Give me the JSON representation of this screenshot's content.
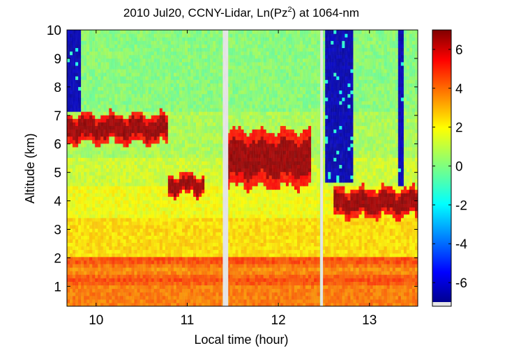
{
  "chart_data": {
    "type": "heatmap",
    "title_main": "2010 Jul20, CCNY-Lidar, Ln(Pz",
    "title_sup": "2",
    "title_tail": ") at 1064-nm",
    "xlabel": "Local time (hour)",
    "ylabel": "Altitude (km)",
    "xlim": [
      9.68,
      13.53
    ],
    "ylim": [
      0.3,
      10
    ],
    "x_ticks": [
      10,
      11,
      12,
      13
    ],
    "y_ticks": [
      1,
      2,
      3,
      4,
      5,
      6,
      7,
      8,
      9,
      10
    ],
    "colorbar": {
      "range": [
        -7,
        7
      ],
      "ticks": [
        6,
        4,
        2,
        0,
        -2,
        -4,
        -6
      ],
      "tick_labels": [
        "6",
        "4",
        "2",
        "0",
        "-2",
        "-4",
        "-6"
      ],
      "colormap": "jet"
    },
    "data_gaps_hours": [
      [
        11.39,
        11.45
      ],
      [
        12.46,
        12.49
      ]
    ],
    "features": {
      "boundary_layer_km": [
        0.9,
        2.1
      ],
      "residual_layer_km": [
        2.1,
        4.5
      ],
      "cloud_layers": [
        {
          "x_start": 9.68,
          "x_end": 10.78,
          "alt_top_km": 7.1,
          "alt_bottom_km": 6.0
        },
        {
          "x_start": 10.78,
          "x_end": 11.2,
          "alt_top_km": 4.95,
          "alt_bottom_km": 4.2
        },
        {
          "x_start": 11.45,
          "x_end": 12.35,
          "alt_top_km": 6.6,
          "alt_bottom_km": 4.4
        },
        {
          "x_start": 12.6,
          "x_end": 13.53,
          "alt_top_km": 4.5,
          "alt_bottom_km": 3.4
        }
      ],
      "clear_sky_regions": [
        {
          "x_start": 9.68,
          "x_end": 9.83,
          "alt_bottom_km": 7.2,
          "alt_top_km": 10
        },
        {
          "x_start": 12.5,
          "x_end": 12.82,
          "alt_bottom_km": 4.6,
          "alt_top_km": 10
        },
        {
          "x_start": 13.3,
          "x_end": 13.38,
          "alt_bottom_km": 4.5,
          "alt_top_km": 10
        }
      ]
    }
  }
}
